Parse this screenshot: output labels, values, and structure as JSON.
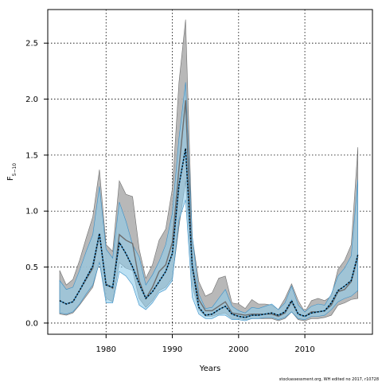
{
  "chart_data": {
    "type": "area",
    "xlabel": "Years",
    "ylabel_main": "F",
    "ylabel_sub": "5−10",
    "xlim": [
      1971.2,
      2020.2
    ],
    "ylim": [
      -0.1,
      2.8
    ],
    "xticks": [
      {
        "value": 1980,
        "label": "1980"
      },
      {
        "value": 1990,
        "label": "1990"
      },
      {
        "value": 2000,
        "label": "2000"
      },
      {
        "value": 2010,
        "label": "2010"
      }
    ],
    "yticks": [
      {
        "value": 0.0,
        "label": "0.0"
      },
      {
        "value": 0.5,
        "label": "0.5"
      },
      {
        "value": 1.0,
        "label": "1.0"
      },
      {
        "value": 1.5,
        "label": "1.5"
      },
      {
        "value": 2.0,
        "label": "2.0"
      },
      {
        "value": 2.5,
        "label": "2.5"
      }
    ],
    "grid": true,
    "footnote": "stockassessment.org,  WH  edited  no  2017,  r10728",
    "colors": {
      "grey_band": "#b0b0b0",
      "grey_line": "#6e6e6e",
      "blue_band": "#8fcbea",
      "blue_line": "#3a90c8",
      "overlap": "#9bbccd",
      "estimate": "#000000"
    },
    "x": [
      1973,
      1974,
      1975,
      1976,
      1977,
      1978,
      1979,
      1980,
      1981,
      1982,
      1983,
      1984,
      1985,
      1986,
      1987,
      1988,
      1989,
      1990,
      1991,
      1992,
      1993,
      1994,
      1995,
      1996,
      1997,
      1998,
      1999,
      2000,
      2001,
      2002,
      2003,
      2004,
      2005,
      2006,
      2007,
      2008,
      2009,
      2010,
      2011,
      2012,
      2013,
      2014,
      2015,
      2016,
      2017,
      2018
    ],
    "grey_estimate": [
      0.2,
      0.17,
      0.19,
      0.29,
      0.39,
      0.49,
      0.79,
      0.35,
      0.31,
      0.79,
      0.74,
      0.71,
      0.38,
      0.22,
      0.32,
      0.46,
      0.52,
      0.72,
      1.38,
      1.99,
      0.52,
      0.21,
      0.11,
      0.11,
      0.15,
      0.19,
      0.09,
      0.08,
      0.07,
      0.08,
      0.08,
      0.08,
      0.08,
      0.06,
      0.09,
      0.19,
      0.08,
      0.06,
      0.1,
      0.1,
      0.11,
      0.16,
      0.28,
      0.3,
      0.37,
      0.59
    ],
    "grey_lower": [
      0.08,
      0.07,
      0.09,
      0.16,
      0.24,
      0.32,
      0.55,
      0.22,
      0.19,
      0.54,
      0.49,
      0.47,
      0.22,
      0.14,
      0.2,
      0.29,
      0.32,
      0.4,
      0.86,
      1.27,
      0.33,
      0.12,
      0.06,
      0.06,
      0.08,
      0.09,
      0.04,
      0.04,
      0.03,
      0.04,
      0.04,
      0.04,
      0.04,
      0.02,
      0.04,
      0.1,
      0.03,
      0.02,
      0.04,
      0.04,
      0.05,
      0.07,
      0.16,
      0.18,
      0.21,
      0.22
    ],
    "grey_upper": [
      0.47,
      0.34,
      0.39,
      0.56,
      0.76,
      0.95,
      1.37,
      0.7,
      0.64,
      1.27,
      1.15,
      1.13,
      0.66,
      0.4,
      0.52,
      0.74,
      0.84,
      1.2,
      2.15,
      2.71,
      0.77,
      0.37,
      0.24,
      0.27,
      0.4,
      0.42,
      0.18,
      0.17,
      0.13,
      0.21,
      0.17,
      0.17,
      0.16,
      0.12,
      0.22,
      0.35,
      0.2,
      0.1,
      0.2,
      0.22,
      0.2,
      0.24,
      0.48,
      0.56,
      0.7,
      1.57
    ],
    "blue_estimate": [
      0.2,
      0.17,
      0.19,
      0.29,
      0.4,
      0.51,
      0.8,
      0.34,
      0.32,
      0.72,
      0.62,
      0.5,
      0.35,
      0.22,
      0.28,
      0.37,
      0.46,
      0.62,
      1.23,
      1.56,
      0.51,
      0.14,
      0.07,
      0.08,
      0.12,
      0.15,
      0.08,
      0.06,
      0.05,
      0.07,
      0.07,
      0.08,
      0.09,
      0.07,
      0.1,
      0.2,
      0.08,
      0.06,
      0.09,
      0.1,
      0.11,
      0.18,
      0.29,
      0.33,
      0.38,
      0.61
    ],
    "blue_lower": [
      0.09,
      0.08,
      0.1,
      0.17,
      0.26,
      0.34,
      0.54,
      0.18,
      0.18,
      0.46,
      0.42,
      0.34,
      0.16,
      0.12,
      0.18,
      0.27,
      0.3,
      0.38,
      0.92,
      1.1,
      0.23,
      0.08,
      0.04,
      0.04,
      0.07,
      0.07,
      0.03,
      0.03,
      0.02,
      0.04,
      0.04,
      0.05,
      0.05,
      0.03,
      0.05,
      0.1,
      0.04,
      0.03,
      0.06,
      0.06,
      0.07,
      0.12,
      0.19,
      0.22,
      0.24,
      0.29
    ],
    "blue_upper": [
      0.38,
      0.3,
      0.32,
      0.47,
      0.64,
      0.79,
      1.22,
      0.66,
      0.58,
      1.08,
      0.91,
      0.7,
      0.59,
      0.34,
      0.43,
      0.55,
      0.7,
      0.98,
      1.65,
      2.15,
      0.78,
      0.26,
      0.13,
      0.14,
      0.22,
      0.3,
      0.15,
      0.11,
      0.09,
      0.14,
      0.13,
      0.15,
      0.17,
      0.12,
      0.18,
      0.33,
      0.16,
      0.1,
      0.15,
      0.17,
      0.16,
      0.26,
      0.42,
      0.49,
      0.6,
      1.28
    ]
  }
}
